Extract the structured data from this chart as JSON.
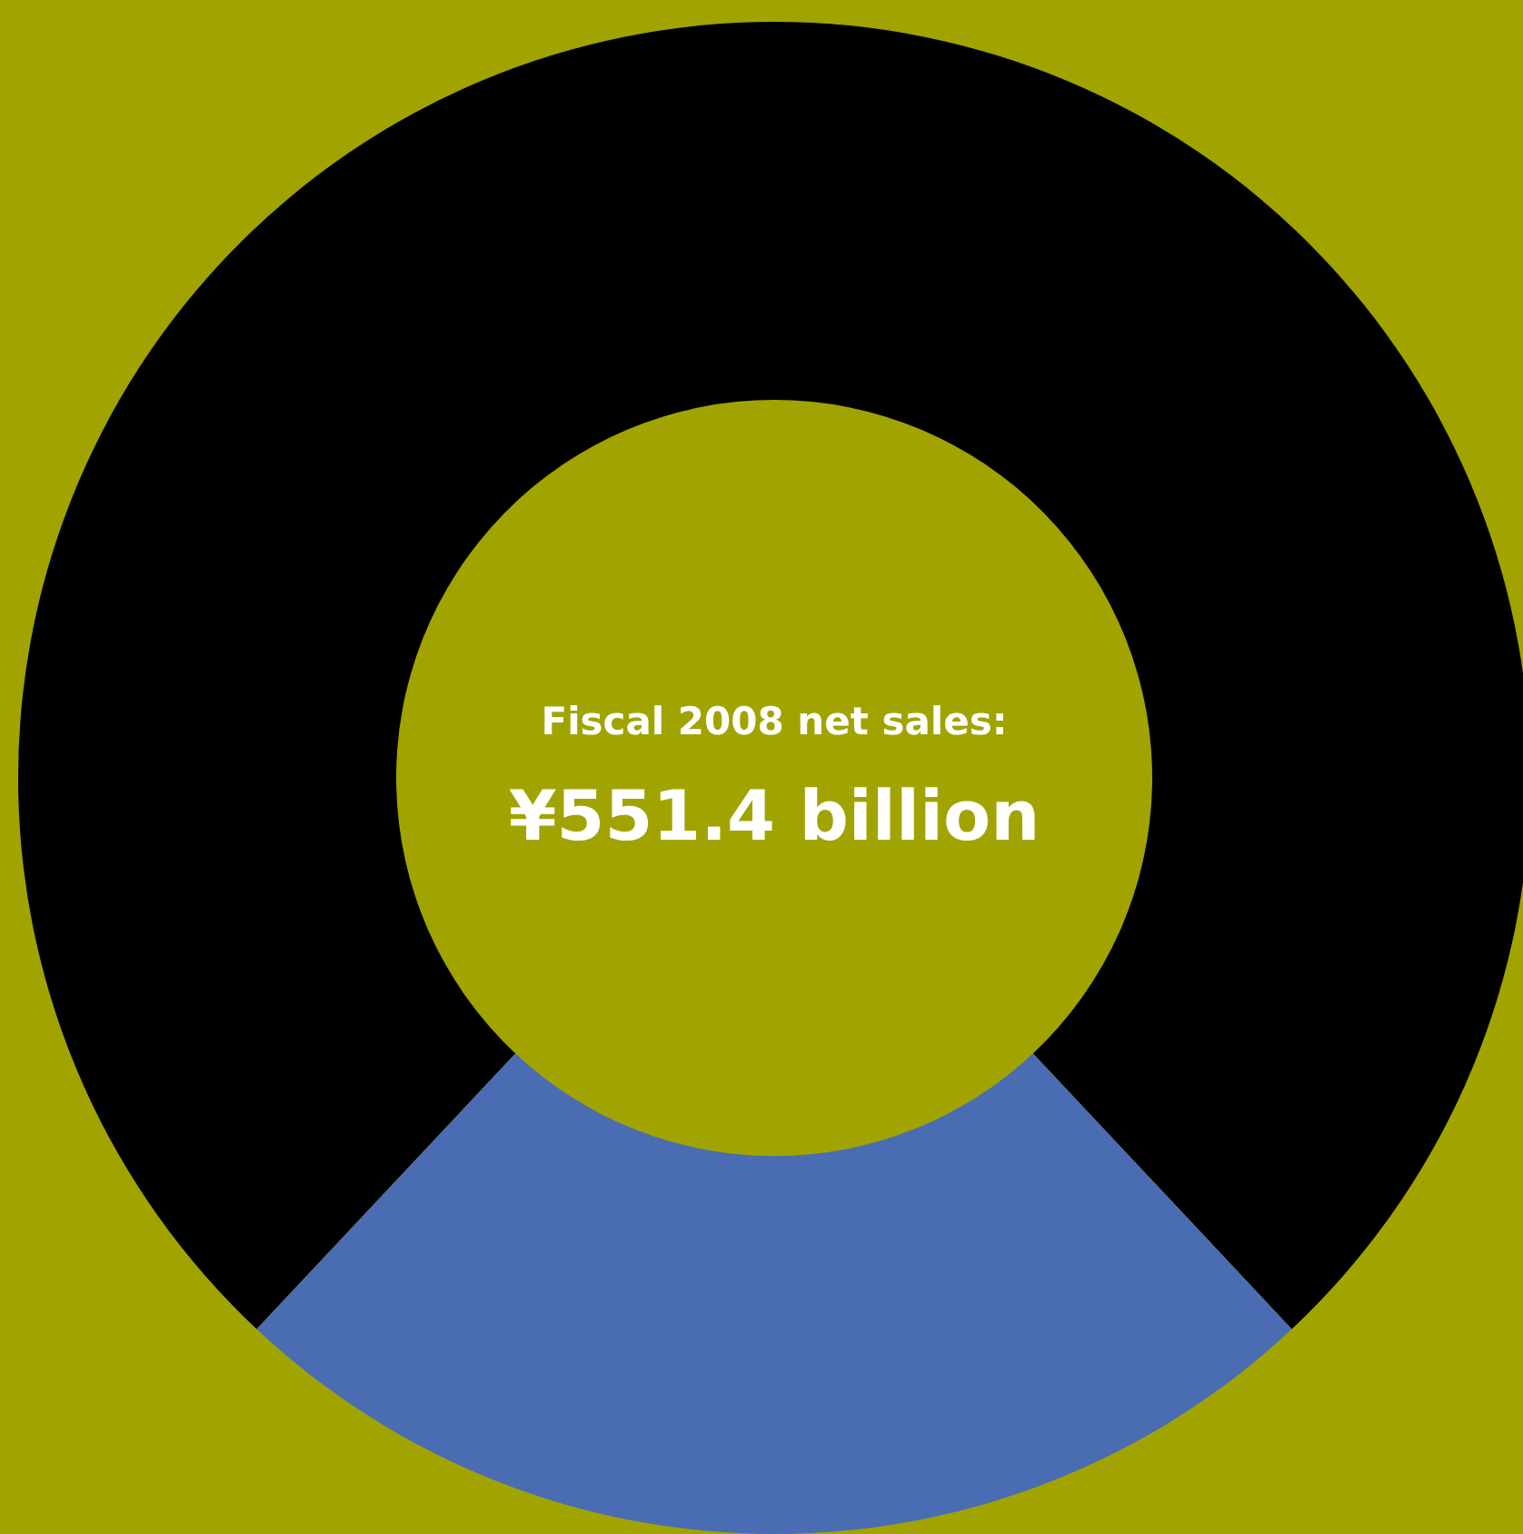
{
  "chart_data": {
    "type": "donut",
    "title": "Fiscal 2008 net sales:",
    "subtitle": "¥551.4 billion",
    "categories": [
      null,
      null
    ],
    "values": [
      76,
      24
    ],
    "colors": [
      "#000000",
      "#4a6cb3"
    ],
    "legend": false
  }
}
